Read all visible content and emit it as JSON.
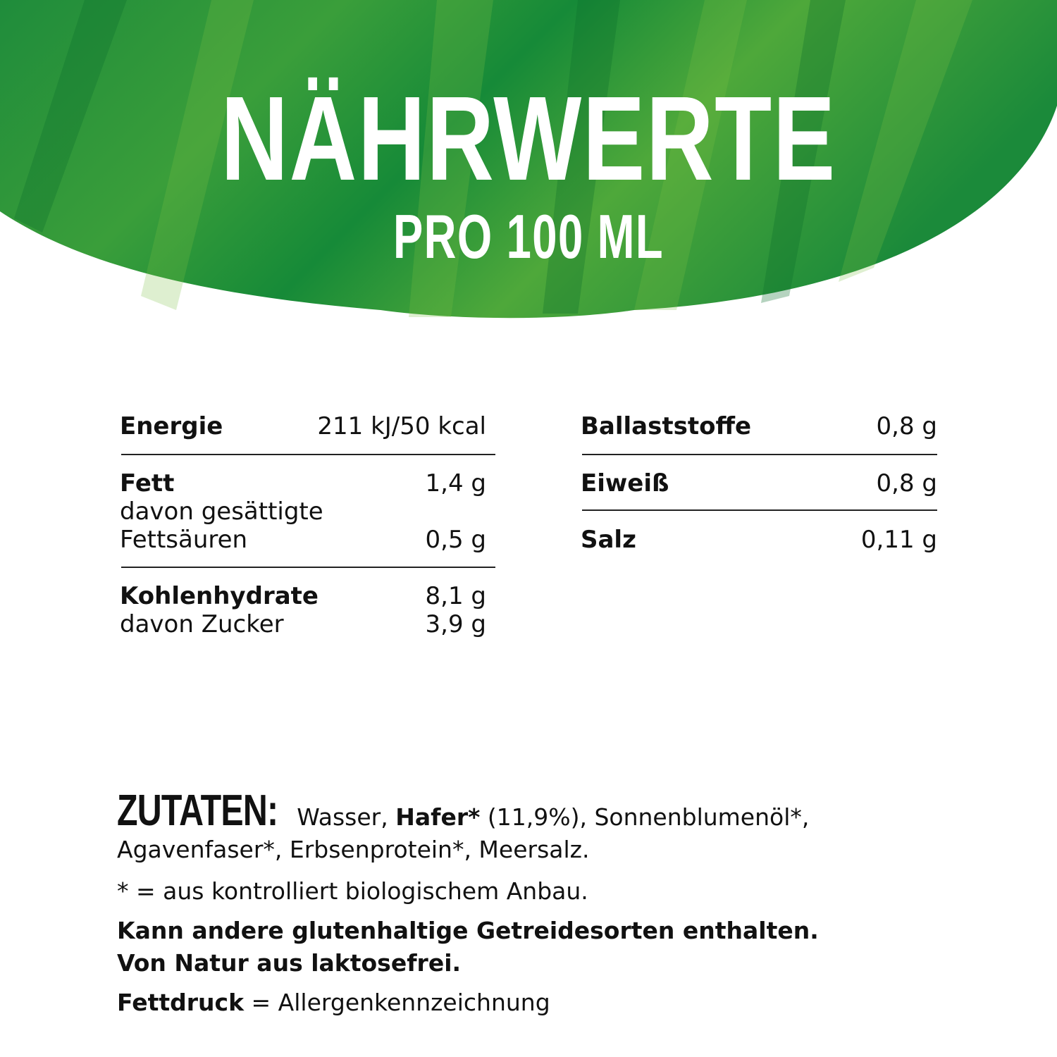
{
  "header": {
    "title": "NÄHRWERTE",
    "subtitle": "PRO 100 ML",
    "color": "#1e8f3a"
  },
  "nutrition_left": [
    {
      "label": "Energie",
      "value": "211 kJ/50 kcal"
    },
    {
      "label": "Fett",
      "value": "1,4 g"
    },
    {
      "label_line1": "davon gesättigte",
      "label_line2": "Fettsäuren",
      "value": "0,5 g"
    },
    {
      "label": "Kohlenhydrate",
      "value": "8,1 g"
    },
    {
      "label": "davon Zucker",
      "value": "3,9 g"
    }
  ],
  "nutrition_right": [
    {
      "label": "Ballaststoffe",
      "value": "0,8 g"
    },
    {
      "label": "Eiweiß",
      "value": "0,8 g"
    },
    {
      "label": "Salz",
      "value": "0,11 g"
    }
  ],
  "ingredients": {
    "heading": "ZUTATEN:",
    "p1": " Wasser, ",
    "p2_bold": "Hafer*",
    "p3": " (11,9%), Sonnenblumenöl*, Agavenfaser*, Erbsenprotein*, Meersalz.",
    "organic_note": "* = aus kontrolliert biologischem Anbau.",
    "gluten_note": "Kann andere glutenhaltige Getreidesorten enthalten.",
    "lactose_note": "Von Natur aus laktosefrei.",
    "legend_bold": "Fettdruck",
    "legend_rest": " = Allergenkennzeichnung"
  }
}
